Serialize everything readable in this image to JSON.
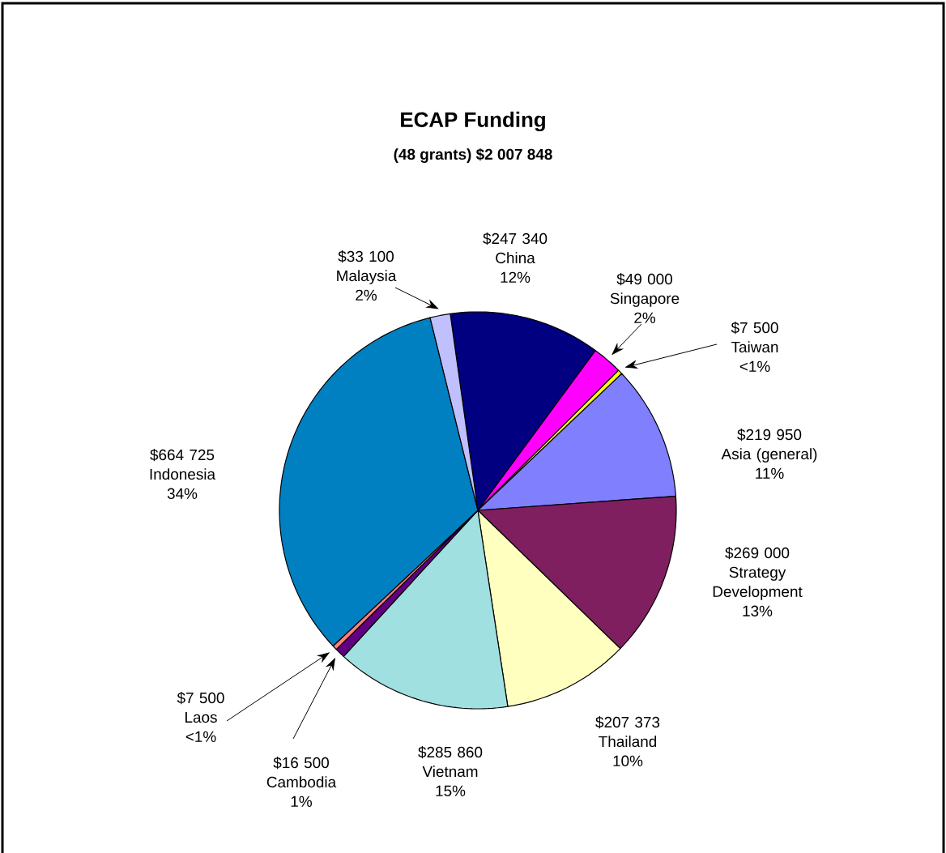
{
  "chart_data": {
    "type": "pie",
    "title": "ECAP Funding",
    "subtitle": "(48 grants) $2 007 848",
    "categories": [
      "China",
      "Singapore",
      "Taiwan",
      "Asia (general)",
      "Strategy Development",
      "Thailand",
      "Vietnam",
      "Cambodia",
      "Laos",
      "Indonesia",
      "Malaysia"
    ],
    "values": [
      247340,
      49000,
      7500,
      219950,
      269000,
      207373,
      285860,
      16500,
      7500,
      664725,
      33100
    ],
    "colors": [
      "#000080",
      "#ff00ff",
      "#ffff00",
      "#8080ff",
      "#7f1f5f",
      "#ffffc0",
      "#a0e0e0",
      "#600080",
      "#ff8080",
      "#0080c0",
      "#c0c0ff"
    ],
    "value_labels": [
      "$247 340",
      "$49 000",
      "$7 500",
      "$219 950",
      "$269 000",
      "$207 373",
      "$285 860",
      "$16 500",
      "$7 500",
      "$664 725",
      "$33 100"
    ],
    "annotations": [
      {
        "text": "12%",
        "x": "China"
      },
      {
        "text": "2%",
        "x": "Singapore"
      },
      {
        "text": "<1%",
        "x": "Taiwan"
      },
      {
        "text": "11%",
        "x": "Asia (general)"
      },
      {
        "text": "13%",
        "x": "Strategy Development"
      },
      {
        "text": "10%",
        "x": "Thailand"
      },
      {
        "text": "15%",
        "x": "Vietnam"
      },
      {
        "text": "1%",
        "x": "Cambodia"
      },
      {
        "text": "<1%",
        "x": "Laos"
      },
      {
        "text": "34%",
        "x": "Indonesia"
      },
      {
        "text": "2%",
        "x": "Malaysia"
      }
    ]
  }
}
